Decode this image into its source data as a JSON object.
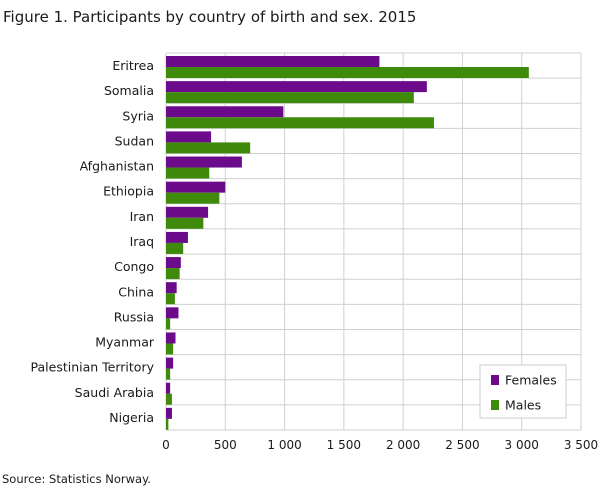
{
  "title": "Figure 1. Participants by country of birth and sex. 2015",
  "source": "Source: Statistics Norway.",
  "chart_data": {
    "type": "bar",
    "orientation": "horizontal",
    "title": "Figure 1. Participants by country of birth and sex. 2015",
    "xlabel": "",
    "ylabel": "",
    "xlim": [
      0,
      3500
    ],
    "xticks": [
      0,
      500,
      1000,
      1500,
      2000,
      2500,
      3000,
      3500
    ],
    "xtick_labels": [
      "0",
      "500",
      "1 000",
      "1 500",
      "2 000",
      "2 500",
      "3 000",
      "3 500"
    ],
    "grid": true,
    "legend": "bottom-right",
    "categories": [
      "Eritrea",
      "Somalia",
      "Syria",
      "Sudan",
      "Afghanistan",
      "Ethiopia",
      "Iran",
      "Iraq",
      "Congo",
      "China",
      "Russia",
      "Myanmar",
      "Palestinian Territory",
      "Saudi Arabia",
      "Nigeria"
    ],
    "series": [
      {
        "name": "Females",
        "color": "#6b0a8a",
        "values": [
          1800,
          2200,
          990,
          380,
          640,
          500,
          355,
          185,
          125,
          90,
          105,
          80,
          60,
          35,
          50
        ]
      },
      {
        "name": "Males",
        "color": "#3f8a0a",
        "values": [
          3060,
          2090,
          2260,
          710,
          365,
          450,
          315,
          145,
          115,
          75,
          35,
          60,
          35,
          50,
          20
        ]
      }
    ]
  }
}
